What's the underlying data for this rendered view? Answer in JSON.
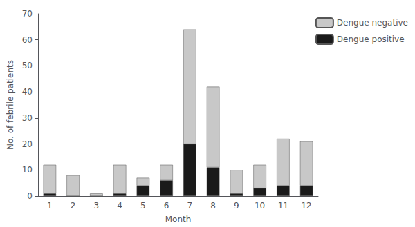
{
  "chart_data": {
    "type": "bar",
    "xlabel": "Month",
    "ylabel": "No. of febrile patients",
    "categories": [
      "1",
      "2",
      "3",
      "4",
      "5",
      "6",
      "7",
      "8",
      "9",
      "10",
      "11",
      "12"
    ],
    "series": [
      {
        "name": "Dengue positive",
        "color": "#1a1a1a",
        "values": [
          1,
          0,
          0,
          1,
          4,
          6,
          20,
          11,
          1,
          3,
          4,
          4
        ]
      },
      {
        "name": "Dengue negative",
        "color": "#c8c8c8",
        "values": [
          11,
          8,
          1,
          11,
          3,
          6,
          44,
          31,
          9,
          9,
          18,
          17
        ]
      }
    ],
    "stacked": true,
    "ylim": [
      0,
      70
    ],
    "yticks": [
      0,
      10,
      20,
      30,
      40,
      50,
      60,
      70
    ],
    "grid": false,
    "legend": "right"
  }
}
